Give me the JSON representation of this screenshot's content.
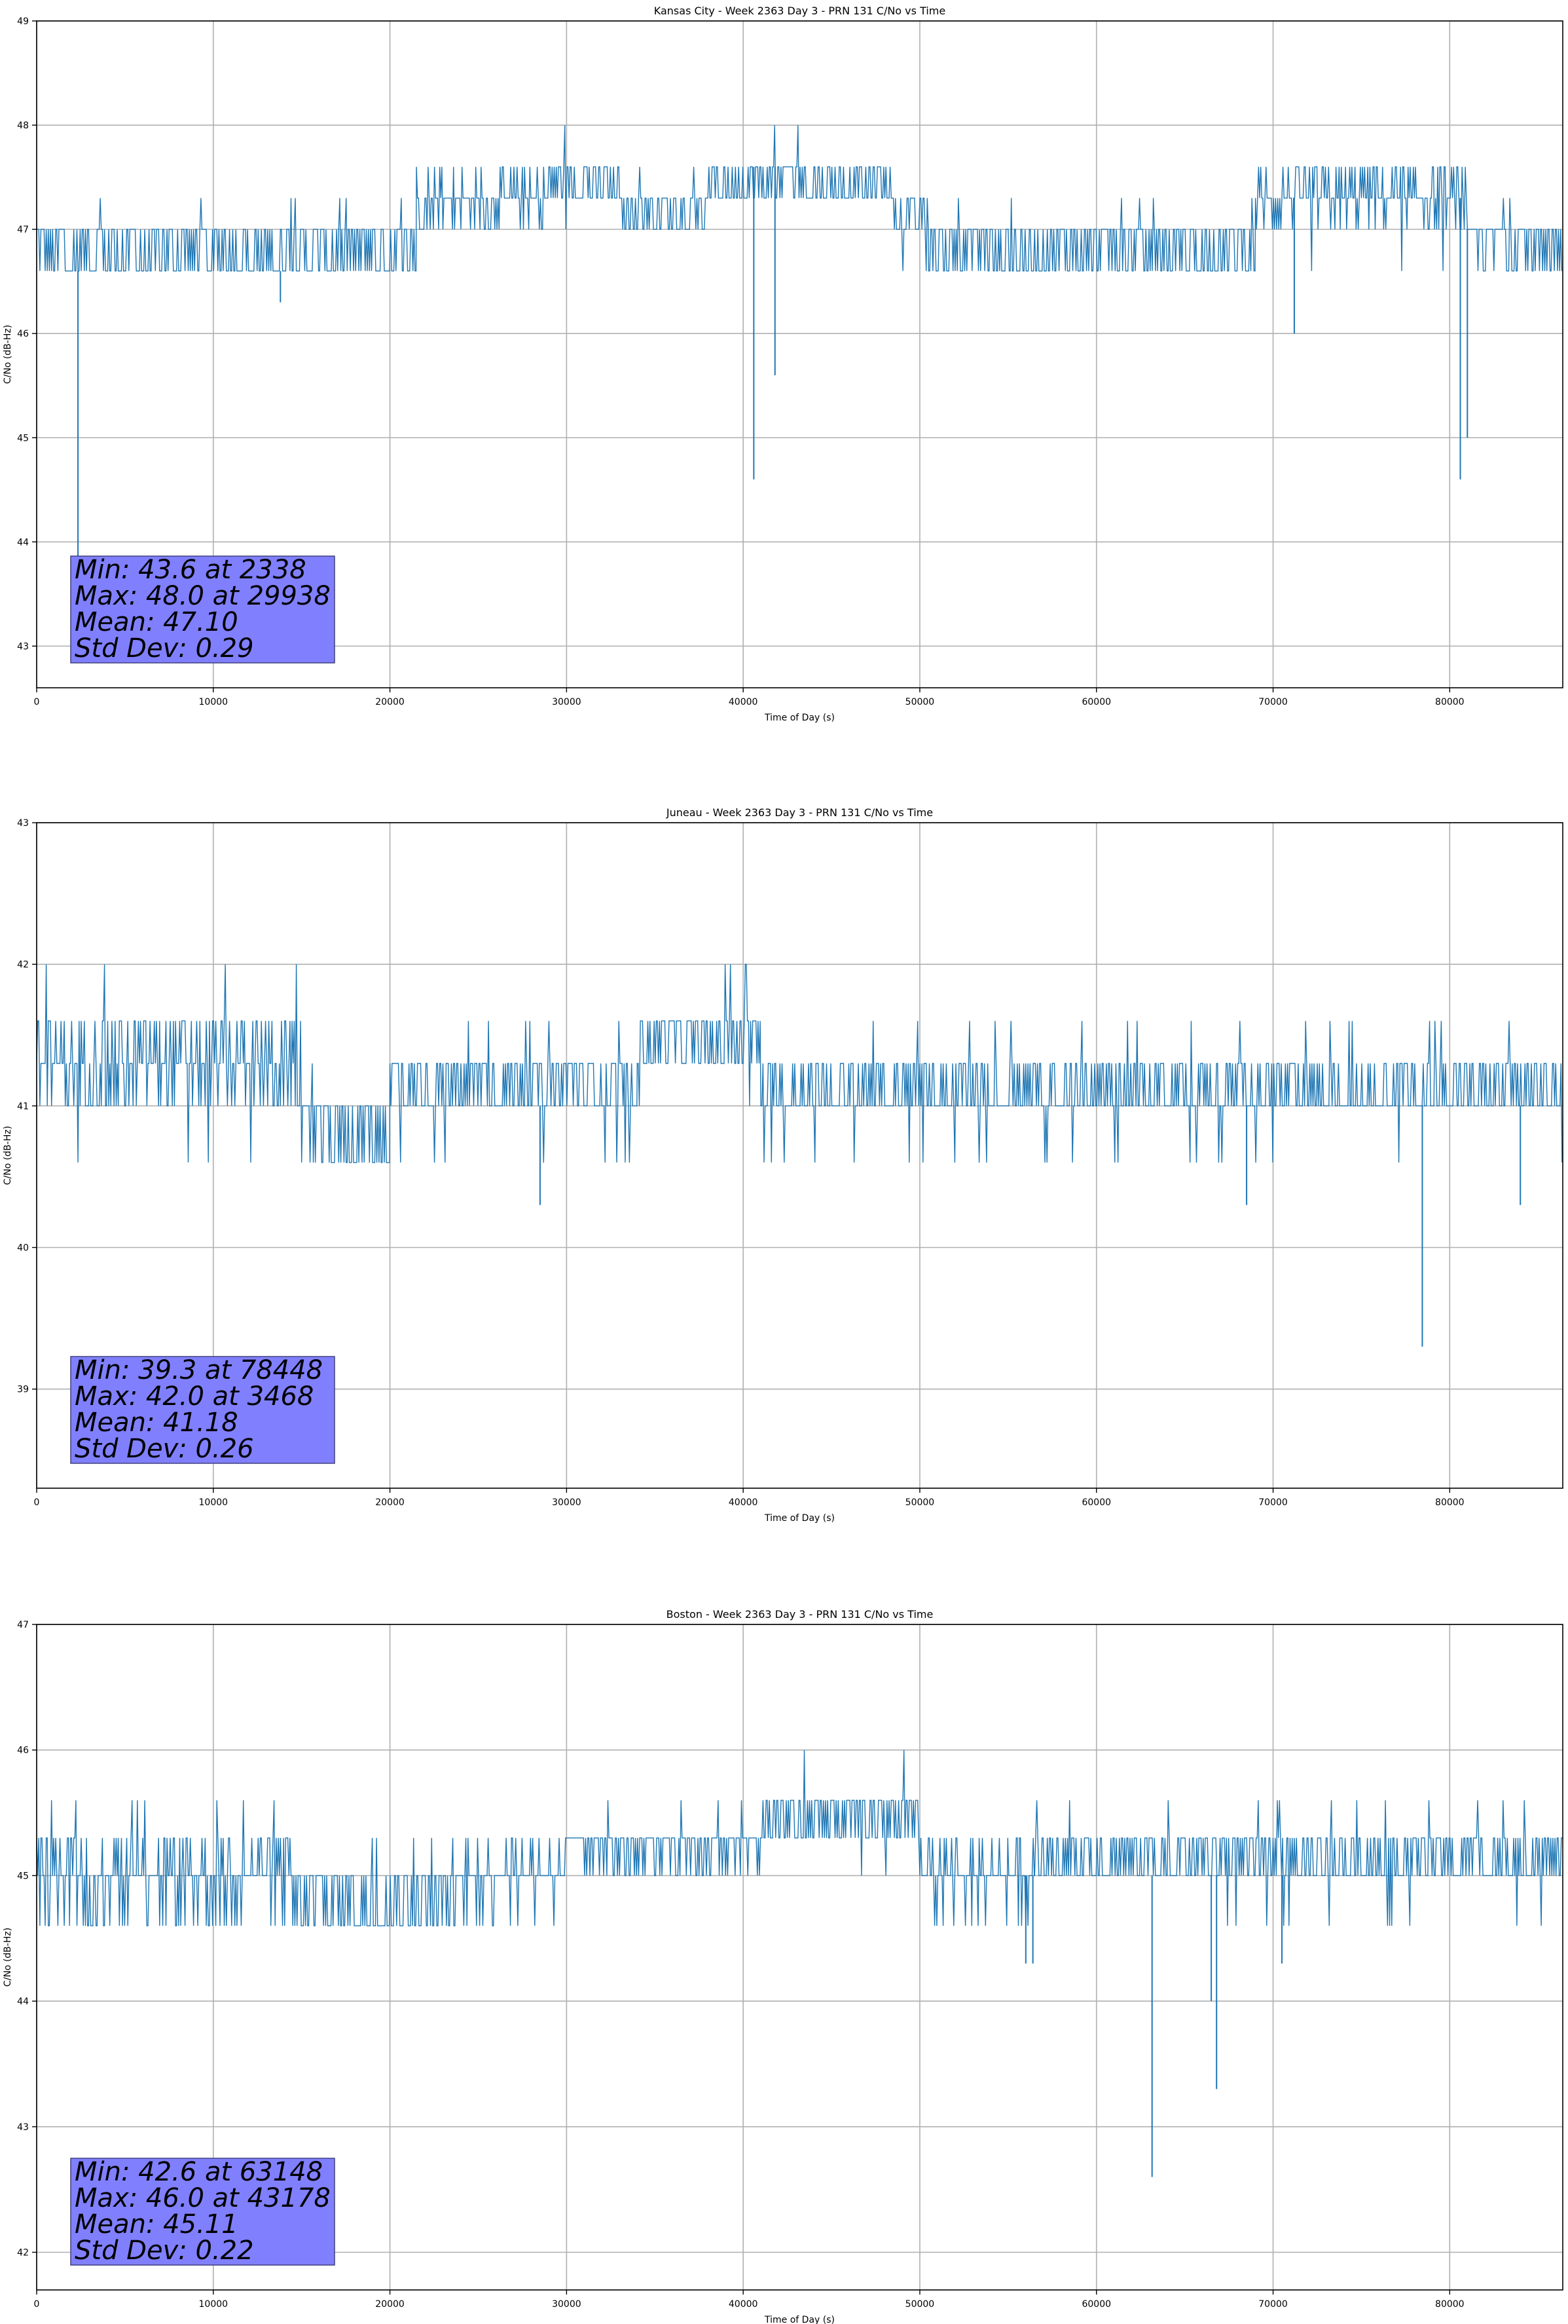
{
  "chart_data": [
    {
      "type": "line",
      "title": "Kansas City - Week 2363 Day 3 - PRN 131 C/No vs Time",
      "xlabel": "Time of Day (s)",
      "ylabel": "C/No (dB-Hz)",
      "xlim": [
        0,
        86400
      ],
      "ylim": [
        42.6,
        49
      ],
      "xticks": [
        0,
        10000,
        20000,
        30000,
        40000,
        50000,
        60000,
        70000,
        80000
      ],
      "yticks": [
        43,
        44,
        45,
        46,
        47,
        48,
        49
      ],
      "grid": true,
      "color": "#1f77b4",
      "series": {
        "name": "C/No",
        "levels": [
          46.6,
          47.0,
          47.3,
          47.6,
          48.0
        ],
        "segments": [
          {
            "x0": 0,
            "x1": 21500,
            "base": 46.8,
            "osc": 0.25,
            "spikes_up": [
              47.3,
              47.3
            ],
            "spikes_dn": [
              46.3,
              46.3
            ]
          },
          {
            "x0": 21500,
            "x1": 29000,
            "base": 47.3,
            "osc": 0.25,
            "spikes_up": [
              47.6
            ],
            "spikes_dn": [
              47.0
            ]
          },
          {
            "x0": 29000,
            "x1": 33000,
            "base": 47.45,
            "osc": 0.2,
            "spikes_up": [
              48.0
            ],
            "spikes_dn": [
              47.0
            ]
          },
          {
            "x0": 33000,
            "x1": 38000,
            "base": 47.2,
            "osc": 0.2,
            "spikes_up": [
              47.6
            ],
            "spikes_dn": [
              47.0
            ]
          },
          {
            "x0": 38000,
            "x1": 48500,
            "base": 47.45,
            "osc": 0.2,
            "spikes_up": [
              48.0
            ],
            "spikes_dn": [
              47.0
            ]
          },
          {
            "x0": 48500,
            "x1": 50500,
            "base": 47.1,
            "osc": 0.2,
            "spikes_up": [
              47.3
            ],
            "spikes_dn": [
              46.6
            ]
          },
          {
            "x0": 50500,
            "x1": 69000,
            "base": 46.8,
            "osc": 0.25,
            "spikes_up": [
              47.3
            ],
            "spikes_dn": [
              46.3
            ]
          },
          {
            "x0": 69000,
            "x1": 81000,
            "base": 47.3,
            "osc": 0.25,
            "spikes_up": [
              47.6
            ],
            "spikes_dn": [
              46.6
            ]
          },
          {
            "x0": 81000,
            "x1": 86400,
            "base": 46.85,
            "osc": 0.2,
            "spikes_up": [
              47.3
            ],
            "spikes_dn": [
              46.6
            ]
          }
        ],
        "deep_dips": [
          {
            "x": 2338,
            "y": 43.6
          },
          {
            "x": 40600,
            "y": 44.6
          },
          {
            "x": 41800,
            "y": 45.6
          },
          {
            "x": 71200,
            "y": 46.0
          },
          {
            "x": 80600,
            "y": 44.6
          },
          {
            "x": 81000,
            "y": 45.0
          },
          {
            "x": 13800,
            "y": 46.3
          }
        ]
      },
      "stats_box": {
        "lines": [
          "Min: 43.6 at 2338",
          "Max: 48.0 at 29938",
          "Mean: 47.10",
          "Std Dev: 0.29"
        ],
        "color": "#8080ff"
      }
    },
    {
      "type": "line",
      "title": "Juneau - Week 2363 Day 3 - PRN 131 C/No vs Time",
      "xlabel": "Time of Day (s)",
      "ylabel": "C/No (dB-Hz)",
      "xlim": [
        0,
        86400
      ],
      "ylim": [
        38.3,
        43
      ],
      "xticks": [
        0,
        10000,
        20000,
        30000,
        40000,
        50000,
        60000,
        70000,
        80000
      ],
      "yticks": [
        39,
        40,
        41,
        42,
        43
      ],
      "grid": true,
      "color": "#1f77b4",
      "series": {
        "name": "C/No",
        "levels": [
          40.3,
          40.6,
          41.0,
          41.3,
          41.6,
          42.0
        ],
        "segments": [
          {
            "x0": 0,
            "x1": 15000,
            "base": 41.3,
            "osc": 0.3,
            "spikes_up": [
              42.0
            ],
            "spikes_dn": [
              40.6
            ]
          },
          {
            "x0": 15000,
            "x1": 20000,
            "base": 40.8,
            "osc": 0.25,
            "spikes_up": [
              41.3
            ],
            "spikes_dn": [
              40.3
            ]
          },
          {
            "x0": 20000,
            "x1": 34000,
            "base": 41.15,
            "osc": 0.15,
            "spikes_up": [
              41.6
            ],
            "spikes_dn": [
              40.6
            ]
          },
          {
            "x0": 34000,
            "x1": 41000,
            "base": 41.45,
            "osc": 0.3,
            "spikes_up": [
              42.0
            ],
            "spikes_dn": [
              41.0
            ]
          },
          {
            "x0": 41000,
            "x1": 86400,
            "base": 41.1,
            "osc": 0.25,
            "spikes_up": [
              41.6
            ],
            "spikes_dn": [
              40.6
            ]
          }
        ],
        "deep_dips": [
          {
            "x": 78448,
            "y": 39.3
          },
          {
            "x": 28500,
            "y": 40.3
          },
          {
            "x": 68500,
            "y": 40.3
          },
          {
            "x": 84000,
            "y": 40.3
          }
        ]
      },
      "stats_box": {
        "lines": [
          "Min: 39.3 at 78448",
          "Max: 42.0 at 3468",
          "Mean: 41.18",
          "Std Dev: 0.26"
        ],
        "color": "#8080ff"
      }
    },
    {
      "type": "line",
      "title": "Boston - Week 2363 Day 3 - PRN 131 C/No vs Time",
      "xlabel": "Time of Day (s)",
      "ylabel": "C/No (dB-Hz)",
      "xlim": [
        0,
        86400
      ],
      "ylim": [
        41.7,
        47
      ],
      "xticks": [
        0,
        10000,
        20000,
        30000,
        40000,
        50000,
        60000,
        70000,
        80000
      ],
      "yticks": [
        42,
        43,
        44,
        45,
        46,
        47
      ],
      "grid": true,
      "color": "#1f77b4",
      "series": {
        "name": "C/No",
        "levels": [
          44.6,
          45.0,
          45.3,
          45.6,
          46.0
        ],
        "segments": [
          {
            "x0": 0,
            "x1": 14500,
            "base": 45.0,
            "osc": 0.3,
            "spikes_up": [
              45.6
            ],
            "spikes_dn": [
              44.6
            ]
          },
          {
            "x0": 14500,
            "x1": 24000,
            "base": 44.8,
            "osc": 0.2,
            "spikes_up": [
              45.3
            ],
            "spikes_dn": [
              44.6
            ]
          },
          {
            "x0": 24000,
            "x1": 30000,
            "base": 45.0,
            "osc": 0.25,
            "spikes_up": [
              45.3
            ],
            "spikes_dn": [
              44.6
            ]
          },
          {
            "x0": 30000,
            "x1": 41000,
            "base": 45.25,
            "osc": 0.2,
            "spikes_up": [
              45.6
            ],
            "spikes_dn": [
              45.0
            ]
          },
          {
            "x0": 41000,
            "x1": 50000,
            "base": 45.45,
            "osc": 0.15,
            "spikes_up": [
              46.0
            ],
            "spikes_dn": [
              45.0
            ]
          },
          {
            "x0": 50000,
            "x1": 56500,
            "base": 45.0,
            "osc": 0.25,
            "spikes_up": [
              45.3
            ],
            "spikes_dn": [
              44.6
            ]
          },
          {
            "x0": 56500,
            "x1": 86400,
            "base": 45.15,
            "osc": 0.2,
            "spikes_up": [
              45.6
            ],
            "spikes_dn": [
              44.6
            ]
          }
        ],
        "deep_dips": [
          {
            "x": 63148,
            "y": 42.6
          },
          {
            "x": 66800,
            "y": 43.3
          },
          {
            "x": 66500,
            "y": 44.0
          },
          {
            "x": 56000,
            "y": 44.3
          },
          {
            "x": 56400,
            "y": 44.3
          },
          {
            "x": 70500,
            "y": 44.3
          }
        ]
      },
      "stats_box": {
        "lines": [
          "Min: 42.6 at 63148",
          "Max: 46.0 at 43178",
          "Mean: 45.11",
          "Std Dev: 0.22"
        ],
        "color": "#8080ff"
      }
    }
  ]
}
